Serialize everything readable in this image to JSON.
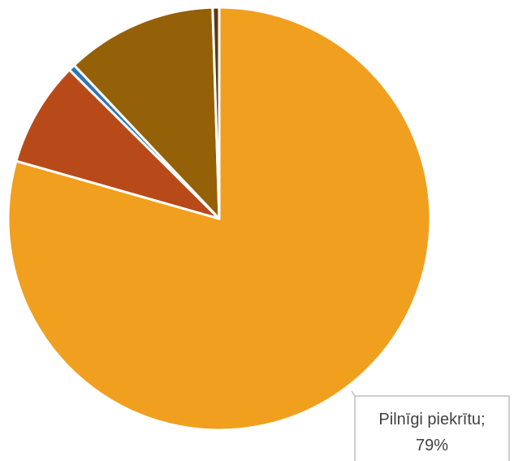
{
  "chart_data": {
    "type": "pie",
    "title": "",
    "slices": [
      {
        "name": "Pilnīgi piekrītu",
        "value": 79,
        "color": "#F0A01E",
        "label_visible": true,
        "label_name": "Pilnīgi piekrītu;",
        "label_value": "79%"
      },
      {
        "name": "",
        "value": 8,
        "color": "#B84A1A",
        "label_visible": false
      },
      {
        "name": "",
        "value": 0.5,
        "color": "#2E75B6",
        "label_visible": false
      },
      {
        "name": "",
        "value": 11.5,
        "color": "#946008",
        "label_visible": false
      },
      {
        "name": "",
        "value": 0.5,
        "color": "#5A3A10",
        "label_visible": false
      }
    ],
    "start": "12 o'clock",
    "direction": "clockwise",
    "legend": "none"
  }
}
